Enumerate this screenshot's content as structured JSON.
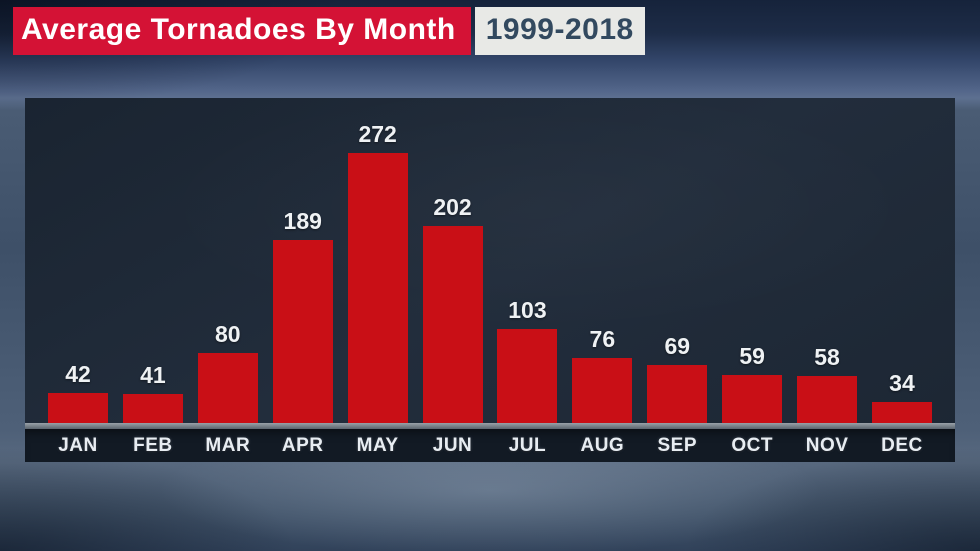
{
  "header": {
    "title": "Average Tornadoes By Month",
    "range": "1999-2018"
  },
  "chart_data": {
    "type": "bar",
    "title": "Average Tornadoes By Month",
    "subtitle": "1999-2018",
    "categories": [
      "JAN",
      "FEB",
      "MAR",
      "APR",
      "MAY",
      "JUN",
      "JUL",
      "AUG",
      "SEP",
      "OCT",
      "NOV",
      "DEC"
    ],
    "values": [
      42,
      41,
      80,
      189,
      272,
      202,
      103,
      76,
      69,
      59,
      58,
      34
    ],
    "xlabel": "",
    "ylabel": "",
    "ylim": [
      0,
      272
    ],
    "grid": false,
    "legend": false,
    "data_labels": true
  },
  "colors": {
    "title_bg": "#d41235",
    "title_text": "#ffffff",
    "range_bg": "#e8e9e6",
    "range_text": "#32495f",
    "bar": "#c90f16",
    "value_label": "#eff2f4",
    "category_label": "#e8edf2",
    "strip_bg": "#121a24",
    "baseline_top": "#99a1a9",
    "baseline_bottom": "#5b646e"
  }
}
